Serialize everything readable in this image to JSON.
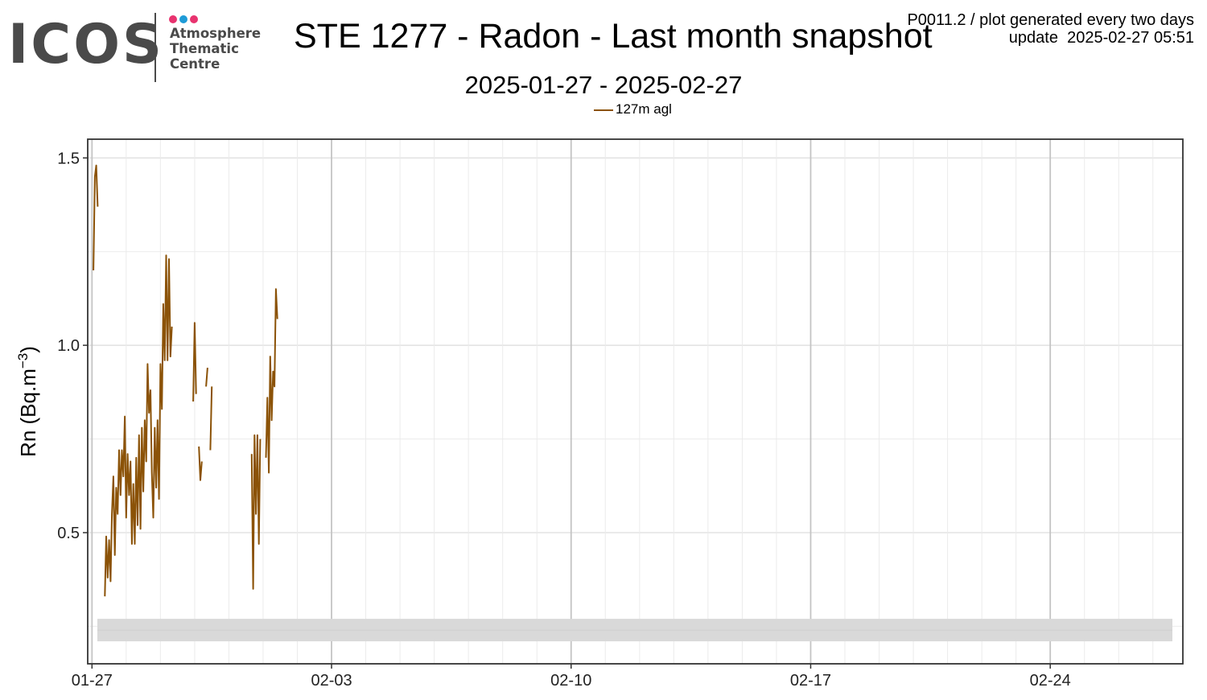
{
  "header": {
    "title": "STE 1277 - Radon - Last month snapshot",
    "subtitle": "2025-01-27 - 2025-02-27",
    "meta_line1": "P0011.2 / plot generated every two days",
    "meta_line2": "update  2025-02-27 05:51"
  },
  "logo": {
    "wordmark": "ICOS",
    "line1": "Atmosphere",
    "line2": "Thematic",
    "line3": "Centre",
    "dot_colors": [
      "#e8336f",
      "#1e9bd7",
      "#e8336f"
    ],
    "text_color": "#4a4a4a"
  },
  "chart_data": {
    "type": "line",
    "title": "STE 1277 - Radon - Last month snapshot",
    "subtitle": "2025-01-27 - 2025-02-27",
    "xlabel": "",
    "ylabel": "Rn (Bq.m⁻³)",
    "ylabel_base": "Rn (Bq.m",
    "ylabel_exp": "−3",
    "ylabel_close": ")",
    "x_unit": "date",
    "xlim": [
      "2025-01-26T21:00",
      "2025-02-27T21:00"
    ],
    "ylim": [
      0.15,
      1.55
    ],
    "x_major_ticks": [
      "2025-01-27",
      "2025-02-03",
      "2025-02-10",
      "2025-02-17",
      "2025-02-24"
    ],
    "x_tick_labels": [
      "01-27",
      "02-03",
      "02-10",
      "02-17",
      "02-24"
    ],
    "y_ticks": [
      0.5,
      1.0,
      1.5
    ],
    "y_tick_labels": [
      "0.5",
      "1.0",
      "1.5"
    ],
    "grid": true,
    "legend_position": "top-center",
    "shaded_band": [
      0.21,
      0.27
    ],
    "colors": {
      "line": "#8b5207",
      "band": "#d9d9d9",
      "grid_minor": "#ebebeb",
      "grid_major": "#c4c4c4"
    },
    "series": [
      {
        "name": "127m agl",
        "color": "#8b5207",
        "segments": [
          [
            [
              "2025-01-27T01:00",
              1.2
            ],
            [
              "2025-01-27T02:00",
              1.45
            ],
            [
              "2025-01-27T03:00",
              1.48
            ],
            [
              "2025-01-27T04:00",
              1.37
            ]
          ],
          [
            [
              "2025-01-27T09:00",
              0.33
            ],
            [
              "2025-01-27T10:00",
              0.49
            ],
            [
              "2025-01-27T11:00",
              0.38
            ],
            [
              "2025-01-27T12:00",
              0.48
            ],
            [
              "2025-01-27T13:00",
              0.37
            ],
            [
              "2025-01-27T14:00",
              0.55
            ],
            [
              "2025-01-27T15:00",
              0.65
            ],
            [
              "2025-01-27T16:00",
              0.44
            ],
            [
              "2025-01-27T17:00",
              0.62
            ],
            [
              "2025-01-27T18:00",
              0.55
            ],
            [
              "2025-01-27T19:00",
              0.72
            ],
            [
              "2025-01-27T20:00",
              0.6
            ],
            [
              "2025-01-27T21:00",
              0.72
            ],
            [
              "2025-01-27T22:00",
              0.65
            ],
            [
              "2025-01-27T23:00",
              0.81
            ],
            [
              "2025-01-28T00:00",
              0.54
            ],
            [
              "2025-01-28T01:00",
              0.71
            ],
            [
              "2025-01-28T02:00",
              0.6
            ],
            [
              "2025-01-28T03:00",
              0.69
            ],
            [
              "2025-01-28T04:00",
              0.47
            ],
            [
              "2025-01-28T05:00",
              0.63
            ],
            [
              "2025-01-28T06:00",
              0.47
            ],
            [
              "2025-01-28T07:00",
              0.7
            ],
            [
              "2025-01-28T08:00",
              0.52
            ],
            [
              "2025-01-28T09:00",
              0.76
            ],
            [
              "2025-01-28T10:00",
              0.51
            ],
            [
              "2025-01-28T11:00",
              0.78
            ],
            [
              "2025-01-28T12:00",
              0.61
            ],
            [
              "2025-01-28T13:00",
              0.8
            ],
            [
              "2025-01-28T14:00",
              0.69
            ],
            [
              "2025-01-28T15:00",
              0.95
            ],
            [
              "2025-01-28T16:00",
              0.82
            ],
            [
              "2025-01-28T17:00",
              0.88
            ],
            [
              "2025-01-28T18:00",
              0.66
            ],
            [
              "2025-01-28T19:00",
              0.54
            ],
            [
              "2025-01-28T20:00",
              0.78
            ],
            [
              "2025-01-28T21:00",
              0.62
            ],
            [
              "2025-01-28T22:00",
              0.8
            ],
            [
              "2025-01-28T23:00",
              0.59
            ],
            [
              "2025-01-29T00:00",
              0.95
            ],
            [
              "2025-01-29T01:00",
              0.83
            ],
            [
              "2025-01-29T02:00",
              1.11
            ],
            [
              "2025-01-29T03:00",
              0.96
            ],
            [
              "2025-01-29T04:00",
              1.24
            ],
            [
              "2025-01-29T05:00",
              0.96
            ],
            [
              "2025-01-29T06:00",
              1.23
            ],
            [
              "2025-01-29T07:00",
              0.97
            ],
            [
              "2025-01-29T08:00",
              1.05
            ]
          ],
          [
            [
              "2025-01-29T23:00",
              0.85
            ],
            [
              "2025-01-30T00:00",
              1.06
            ],
            [
              "2025-01-30T01:00",
              0.87
            ]
          ],
          [
            [
              "2025-01-30T03:00",
              0.73
            ],
            [
              "2025-01-30T04:00",
              0.64
            ],
            [
              "2025-01-30T05:00",
              0.69
            ]
          ],
          [
            [
              "2025-01-30T08:00",
              0.89
            ],
            [
              "2025-01-30T09:00",
              0.94
            ]
          ],
          [
            [
              "2025-01-30T11:00",
              0.72
            ],
            [
              "2025-01-30T12:00",
              0.89
            ]
          ],
          [
            [
              "2025-01-31T16:00",
              0.71
            ],
            [
              "2025-01-31T17:00",
              0.35
            ],
            [
              "2025-01-31T18:00",
              0.76
            ],
            [
              "2025-01-31T19:00",
              0.55
            ],
            [
              "2025-01-31T20:00",
              0.76
            ],
            [
              "2025-01-31T21:00",
              0.47
            ],
            [
              "2025-01-31T22:00",
              0.75
            ]
          ],
          [
            [
              "2025-02-01T02:00",
              0.7
            ],
            [
              "2025-02-01T03:00",
              0.86
            ],
            [
              "2025-02-01T04:00",
              0.66
            ],
            [
              "2025-02-01T05:00",
              0.97
            ],
            [
              "2025-02-01T06:00",
              0.8
            ],
            [
              "2025-02-01T07:00",
              0.93
            ],
            [
              "2025-02-01T08:00",
              0.89
            ],
            [
              "2025-02-01T09:00",
              1.15
            ],
            [
              "2025-02-01T10:00",
              1.07
            ]
          ]
        ]
      }
    ]
  }
}
